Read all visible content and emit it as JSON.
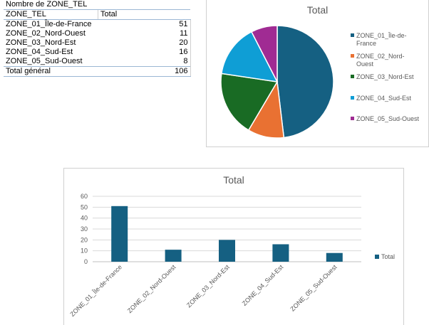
{
  "pivot": {
    "header_label": "Nombre de ZONE_TEL",
    "col_row_label": "ZONE_TEL",
    "col_value_label": "Total",
    "rows": [
      {
        "label": "ZONE_01_Île-de-France",
        "value": "51"
      },
      {
        "label": "ZONE_02_Nord-Ouest",
        "value": "11"
      },
      {
        "label": "ZONE_03_Nord-Est",
        "value": "20"
      },
      {
        "label": "ZONE_04_Sud-Est",
        "value": "16"
      },
      {
        "label": "ZONE_05_Sud-Ouest",
        "value": "8"
      }
    ],
    "total_label": "Total général",
    "total_value": "106"
  },
  "chart_data": [
    {
      "type": "pie",
      "title": "Total",
      "categories": [
        "ZONE_01_Île-de-France",
        "ZONE_02_Nord-Ouest",
        "ZONE_03_Nord-Est",
        "ZONE_04_Sud-Est",
        "ZONE_05_Sud-Ouest"
      ],
      "values": [
        51,
        11,
        20,
        16,
        8
      ],
      "colors": [
        "#156082",
        "#e97132",
        "#196b24",
        "#0f9ed5",
        "#a02b93"
      ],
      "legend_labels": [
        [
          "ZONE_01_Île-de-",
          "France"
        ],
        [
          "ZONE_02_Nord-",
          "Ouest"
        ],
        [
          "ZONE_03_Nord-Est"
        ],
        [
          "ZONE_04_Sud-Est"
        ],
        [
          "ZONE_05_Sud-Ouest"
        ]
      ],
      "legend_position": "right"
    },
    {
      "type": "bar",
      "title": "Total",
      "categories": [
        "ZONE_01_Île-de-France",
        "ZONE_02_Nord-Ouest",
        "ZONE_03_Nord-Est",
        "ZONE_04_Sud-Est",
        "ZONE_05_Sud-Ouest"
      ],
      "series": [
        {
          "name": "Total",
          "values": [
            51,
            11,
            20,
            16,
            8
          ],
          "color": "#156082"
        }
      ],
      "ylim": [
        0,
        60
      ],
      "yticks": [
        "0",
        "10",
        "20",
        "30",
        "40",
        "50",
        "60"
      ],
      "grid": true,
      "legend_position": "right"
    }
  ]
}
